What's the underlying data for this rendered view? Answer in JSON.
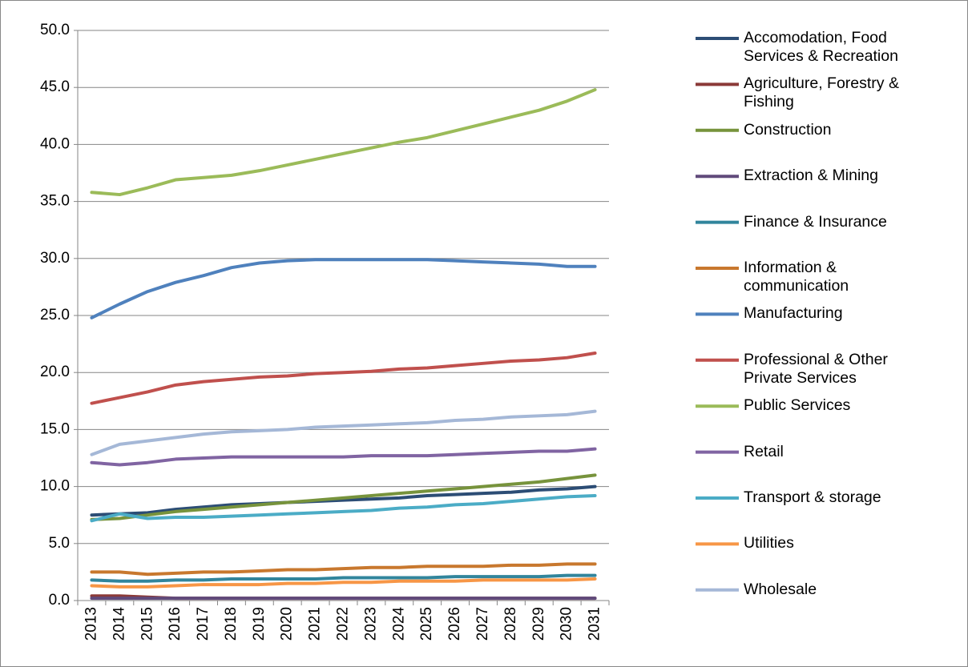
{
  "chart_data": {
    "type": "line",
    "categories": [
      "2013",
      "2014",
      "2015",
      "2016",
      "2017",
      "2018",
      "2019",
      "2020",
      "2021",
      "2022",
      "2023",
      "2024",
      "2025",
      "2026",
      "2027",
      "2028",
      "2029",
      "2030",
      "2031"
    ],
    "ylim": [
      0,
      50
    ],
    "yticks": [
      {
        "value": 0,
        "label": "0.0"
      },
      {
        "value": 5,
        "label": "5.0"
      },
      {
        "value": 10,
        "label": "10.0"
      },
      {
        "value": 15,
        "label": "15.0"
      },
      {
        "value": 20,
        "label": "20.0"
      },
      {
        "value": 25,
        "label": "25.0"
      },
      {
        "value": 30,
        "label": "30.0"
      },
      {
        "value": 35,
        "label": "35.0"
      },
      {
        "value": 40,
        "label": "40.0"
      },
      {
        "value": 45,
        "label": "45.0"
      },
      {
        "value": 50,
        "label": "50.0"
      }
    ],
    "grid": true,
    "legend": "right",
    "series": [
      {
        "name": "Accomodation, Food Services & Recreation",
        "color": "#2c4d75",
        "values": [
          7.5,
          7.6,
          7.7,
          8.0,
          8.2,
          8.4,
          8.5,
          8.6,
          8.7,
          8.8,
          8.9,
          9.0,
          9.2,
          9.3,
          9.4,
          9.5,
          9.7,
          9.8,
          10.0
        ]
      },
      {
        "name": "Agriculture, Forestry & Fishing",
        "color": "#8b3a38",
        "values": [
          0.4,
          0.4,
          0.3,
          0.2,
          0.2,
          0.2,
          0.2,
          0.2,
          0.2,
          0.2,
          0.2,
          0.2,
          0.2,
          0.2,
          0.2,
          0.2,
          0.2,
          0.2,
          0.2
        ]
      },
      {
        "name": "Construction",
        "color": "#77933c",
        "values": [
          7.1,
          7.2,
          7.5,
          7.8,
          8.0,
          8.2,
          8.4,
          8.6,
          8.8,
          9.0,
          9.2,
          9.4,
          9.6,
          9.8,
          10.0,
          10.2,
          10.4,
          10.7,
          11.0
        ]
      },
      {
        "name": "Extraction & Mining",
        "color": "#604a7b",
        "values": [
          0.2,
          0.2,
          0.2,
          0.2,
          0.2,
          0.2,
          0.2,
          0.2,
          0.2,
          0.2,
          0.2,
          0.2,
          0.2,
          0.2,
          0.2,
          0.2,
          0.2,
          0.2,
          0.2
        ]
      },
      {
        "name": "Finance & Insurance",
        "color": "#31859c",
        "values": [
          1.8,
          1.7,
          1.7,
          1.8,
          1.8,
          1.9,
          1.9,
          1.9,
          1.9,
          2.0,
          2.0,
          2.0,
          2.0,
          2.1,
          2.1,
          2.1,
          2.1,
          2.2,
          2.2
        ]
      },
      {
        "name": "Information & communication",
        "color": "#c8782e",
        "values": [
          2.5,
          2.5,
          2.3,
          2.4,
          2.5,
          2.5,
          2.6,
          2.7,
          2.7,
          2.8,
          2.9,
          2.9,
          3.0,
          3.0,
          3.0,
          3.1,
          3.1,
          3.2,
          3.2
        ]
      },
      {
        "name": "Manufacturing",
        "color": "#4f81bd",
        "values": [
          24.8,
          26.0,
          27.1,
          27.9,
          28.5,
          29.2,
          29.6,
          29.8,
          29.9,
          29.9,
          29.9,
          29.9,
          29.9,
          29.8,
          29.7,
          29.6,
          29.5,
          29.3,
          29.3
        ]
      },
      {
        "name": "Professional & Other Private Services",
        "color": "#c0504d",
        "values": [
          17.3,
          17.8,
          18.3,
          18.9,
          19.2,
          19.4,
          19.6,
          19.7,
          19.9,
          20.0,
          20.1,
          20.3,
          20.4,
          20.6,
          20.8,
          21.0,
          21.1,
          21.3,
          21.7
        ]
      },
      {
        "name": "Public Services",
        "color": "#9bbb59",
        "values": [
          35.8,
          35.6,
          36.2,
          36.9,
          37.1,
          37.3,
          37.7,
          38.2,
          38.7,
          39.2,
          39.7,
          40.2,
          40.6,
          41.2,
          41.8,
          42.4,
          43.0,
          43.8,
          44.8
        ]
      },
      {
        "name": "Retail",
        "color": "#8064a2",
        "values": [
          12.1,
          11.9,
          12.1,
          12.4,
          12.5,
          12.6,
          12.6,
          12.6,
          12.6,
          12.6,
          12.7,
          12.7,
          12.7,
          12.8,
          12.9,
          13.0,
          13.1,
          13.1,
          13.3
        ]
      },
      {
        "name": "Transport & storage",
        "color": "#4bacc6",
        "values": [
          7.0,
          7.6,
          7.2,
          7.3,
          7.3,
          7.4,
          7.5,
          7.6,
          7.7,
          7.8,
          7.9,
          8.1,
          8.2,
          8.4,
          8.5,
          8.7,
          8.9,
          9.1,
          9.2
        ]
      },
      {
        "name": "Utilities",
        "color": "#f79646",
        "values": [
          1.3,
          1.2,
          1.2,
          1.3,
          1.4,
          1.4,
          1.4,
          1.5,
          1.5,
          1.6,
          1.6,
          1.7,
          1.7,
          1.7,
          1.8,
          1.8,
          1.8,
          1.8,
          1.9
        ]
      },
      {
        "name": "Wholesale",
        "color": "#a5b8d7",
        "values": [
          12.8,
          13.7,
          14.0,
          14.3,
          14.6,
          14.8,
          14.9,
          15.0,
          15.2,
          15.3,
          15.4,
          15.5,
          15.6,
          15.8,
          15.9,
          16.1,
          16.2,
          16.3,
          16.6
        ]
      }
    ]
  }
}
